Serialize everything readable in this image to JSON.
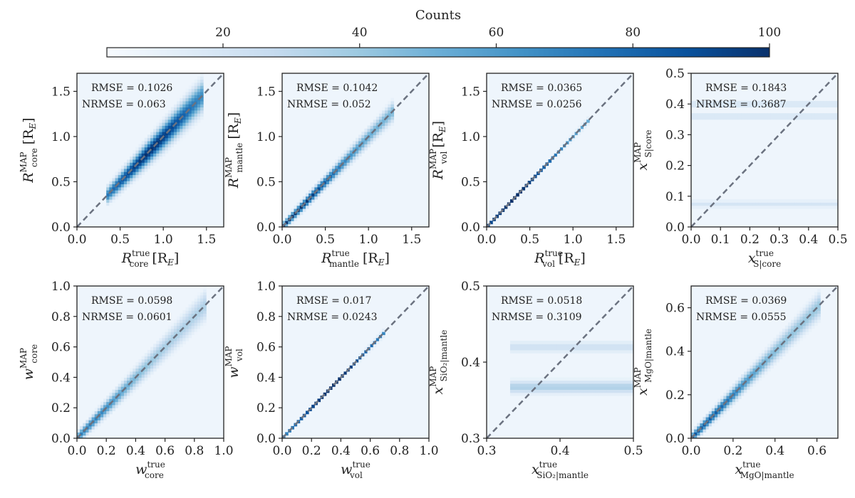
{
  "colorbar": {
    "title": "Counts",
    "ticks": [
      20,
      40,
      60,
      80,
      100
    ],
    "range": [
      3,
      100
    ],
    "colors": [
      "#f7fbff",
      "#deebf7",
      "#c6dbef",
      "#9ecae1",
      "#6baed6",
      "#4292c6",
      "#2171b5",
      "#08519c",
      "#08306b"
    ]
  },
  "chart_data": [
    {
      "type": "heatmap",
      "id": "r_core",
      "xlim": [
        0,
        1.7
      ],
      "ylim": [
        0,
        1.7
      ],
      "xticks": [
        0.0,
        0.5,
        1.0,
        1.5
      ],
      "yticks": [
        0.0,
        0.5,
        1.0,
        1.5
      ],
      "xlabel": {
        "main": "R",
        "sup": "true",
        "sub": "core",
        "unit": "[R",
        "unit_sub": "E",
        "unit_end": "]"
      },
      "ylabel": {
        "main": "R",
        "sup": "MAP",
        "sub": "core",
        "unit": "[R",
        "unit_sub": "E",
        "unit_end": "]"
      },
      "rmse": "RMSE = 0.1026",
      "nrmse": "NRMSE = 0.063",
      "density": {
        "x_range": [
          0.35,
          1.45
        ],
        "spread": 0.09,
        "bias": 0.0,
        "peak_x": 0.85,
        "intensity": 1.0
      }
    },
    {
      "type": "heatmap",
      "id": "r_mantle",
      "xlim": [
        0,
        1.7
      ],
      "ylim": [
        0,
        1.7
      ],
      "xticks": [
        0.0,
        0.5,
        1.0,
        1.5
      ],
      "yticks": [
        0.0,
        0.5,
        1.0,
        1.5
      ],
      "xlabel": {
        "main": "R",
        "sup": "true",
        "sub": "mantle",
        "unit": "[R",
        "unit_sub": "E",
        "unit_end": "]"
      },
      "ylabel": {
        "main": "R",
        "sup": "MAP",
        "sub": "mantle",
        "unit": "[R",
        "unit_sub": "E",
        "unit_end": "]"
      },
      "rmse": "RMSE = 0.1042",
      "nrmse": "NRMSE = 0.052",
      "density": {
        "x_range": [
          0.0,
          1.3
        ],
        "spread": 0.06,
        "bias": 0.0,
        "peak_x": 0.15,
        "intensity": 1.0
      }
    },
    {
      "type": "heatmap",
      "id": "r_vol",
      "xlim": [
        0,
        1.7
      ],
      "ylim": [
        0,
        1.7
      ],
      "xticks": [
        0.0,
        0.5,
        1.0,
        1.5
      ],
      "yticks": [
        0.0,
        0.5,
        1.0,
        1.5
      ],
      "xlabel": {
        "main": "R",
        "sup": "true",
        "sub": "vol",
        "unit": "[R",
        "unit_sub": "E",
        "unit_end": "]"
      },
      "ylabel": {
        "main": "R",
        "sup": "MAP",
        "sub": "vol",
        "unit": "[R",
        "unit_sub": "E",
        "unit_end": "]"
      },
      "rmse": "RMSE = 0.0365",
      "nrmse": "NRMSE = 0.0256",
      "density": {
        "x_range": [
          0.0,
          1.18
        ],
        "spread": 0.015,
        "bias": 0.0,
        "peak_x": 0.3,
        "intensity": 1.0
      }
    },
    {
      "type": "heatmap",
      "id": "x_s_core",
      "xlim": [
        0,
        0.5
      ],
      "ylim": [
        0,
        0.5
      ],
      "xticks": [
        0.0,
        0.1,
        0.2,
        0.3,
        0.4,
        0.5
      ],
      "yticks": [
        0.0,
        0.1,
        0.2,
        0.3,
        0.4,
        0.5
      ],
      "xlabel": {
        "main": "x",
        "sup": "true",
        "sub": "S|core",
        "unit": "",
        "unit_sub": "",
        "unit_end": ""
      },
      "ylabel": {
        "main": "x",
        "sup": "MAP",
        "sub": "S|core",
        "unit": "",
        "unit_sub": "",
        "unit_end": ""
      },
      "rmse": "RMSE = 0.1843",
      "nrmse": "NRMSE = 0.3687",
      "density": {
        "x_range": [
          0.0,
          0.5
        ],
        "spread": 0.0,
        "bias": 0.0,
        "peak_x": 0.0,
        "intensity": 0.12,
        "bands": [
          0.075,
          0.4,
          0.36
        ]
      }
    },
    {
      "type": "heatmap",
      "id": "w_core",
      "xlim": [
        0,
        1.0
      ],
      "ylim": [
        0,
        1.0
      ],
      "xticks": [
        0.0,
        0.2,
        0.4,
        0.6,
        0.8,
        1.0
      ],
      "yticks": [
        0.0,
        0.2,
        0.4,
        0.6,
        0.8,
        1.0
      ],
      "xlabel": {
        "main": "w",
        "sup": "true",
        "sub": "core",
        "unit": "",
        "unit_sub": "",
        "unit_end": ""
      },
      "ylabel": {
        "main": "w",
        "sup": "MAP",
        "sub": "core",
        "unit": "",
        "unit_sub": "",
        "unit_end": ""
      },
      "rmse": "RMSE = 0.0598",
      "nrmse": "NRMSE = 0.0601",
      "density": {
        "x_range": [
          0.0,
          0.88
        ],
        "spread": 0.05,
        "bias": 0.0,
        "peak_x": 0.05,
        "intensity": 0.7
      }
    },
    {
      "type": "heatmap",
      "id": "w_vol",
      "xlim": [
        0,
        1.0
      ],
      "ylim": [
        0,
        1.0
      ],
      "xticks": [
        0.0,
        0.2,
        0.4,
        0.6,
        0.8,
        1.0
      ],
      "yticks": [
        0.0,
        0.2,
        0.4,
        0.6,
        0.8,
        1.0
      ],
      "xlabel": {
        "main": "w",
        "sup": "true",
        "sub": "vol",
        "unit": "",
        "unit_sub": "",
        "unit_end": ""
      },
      "ylabel": {
        "main": "w",
        "sup": "MAP",
        "sub": "vol",
        "unit": "",
        "unit_sub": "",
        "unit_end": ""
      },
      "rmse": "RMSE = 0.017",
      "nrmse": "NRMSE = 0.0243",
      "density": {
        "x_range": [
          0.0,
          0.7
        ],
        "spread": 0.008,
        "bias": 0.0,
        "peak_x": 0.35,
        "intensity": 1.0
      }
    },
    {
      "type": "heatmap",
      "id": "x_sio2_mantle",
      "xlim": [
        0.3,
        0.5
      ],
      "ylim": [
        0.3,
        0.5
      ],
      "xticks": [
        0.3,
        0.4,
        0.5
      ],
      "yticks": [
        0.3,
        0.4,
        0.5
      ],
      "xlabel": {
        "main": "x",
        "sup": "true",
        "sub": "SiO₂|mantle",
        "unit": "",
        "unit_sub": "",
        "unit_end": ""
      },
      "ylabel": {
        "main": "x",
        "sup": "MAP",
        "sub": "SiO₂|mantle",
        "unit": "",
        "unit_sub": "",
        "unit_end": ""
      },
      "rmse": "RMSE = 0.0518",
      "nrmse": "NRMSE = 0.3109",
      "density": {
        "x_range": [
          0.333,
          0.5
        ],
        "spread": 0.0,
        "bias": 0.0,
        "peak_x": 0.0,
        "intensity": 0.14,
        "bands": [
          0.365,
          0.37,
          0.42
        ]
      }
    },
    {
      "type": "heatmap",
      "id": "x_mgo_mantle",
      "xlim": [
        0,
        0.7
      ],
      "ylim": [
        0,
        0.7
      ],
      "xticks": [
        0.0,
        0.2,
        0.4,
        0.6
      ],
      "yticks": [
        0.0,
        0.2,
        0.4,
        0.6
      ],
      "xlabel": {
        "main": "x",
        "sup": "true",
        "sub": "MgO|mantle",
        "unit": "",
        "unit_sub": "",
        "unit_end": ""
      },
      "ylabel": {
        "main": "x",
        "sup": "MAP",
        "sub": "MgO|mantle",
        "unit": "",
        "unit_sub": "",
        "unit_end": ""
      },
      "rmse": "RMSE = 0.0369",
      "nrmse": "NRMSE = 0.0555",
      "density": {
        "x_range": [
          0.0,
          0.62
        ],
        "spread": 0.03,
        "bias": 0.0,
        "peak_x": 0.05,
        "intensity": 0.85
      }
    }
  ]
}
